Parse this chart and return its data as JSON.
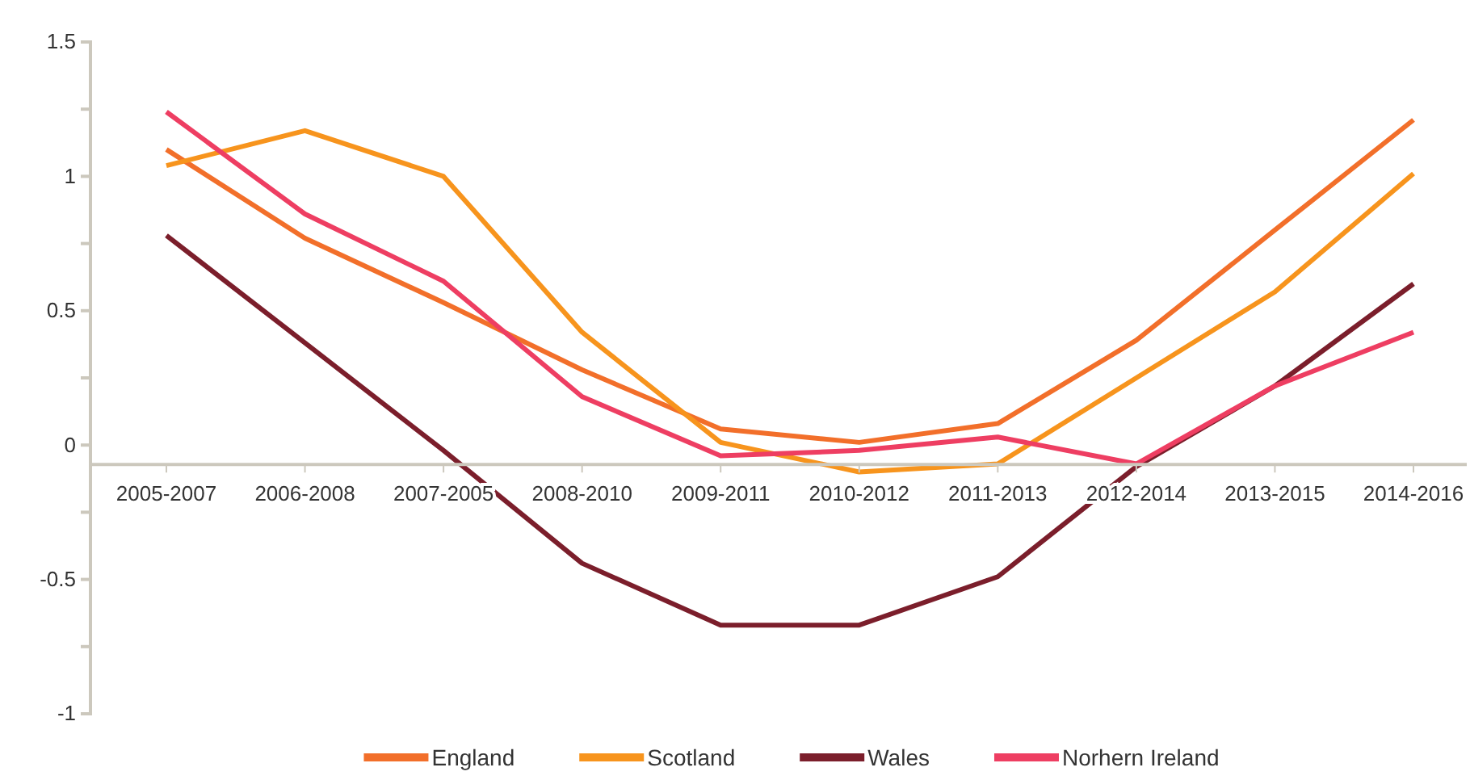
{
  "chart_data": {
    "type": "line",
    "categories": [
      "2005-2007",
      "2006-2008",
      "2007-2005",
      "2008-2010",
      "2009-2011",
      "2010-2012",
      "2011-2013",
      "2012-2014",
      "2013-2015",
      "2014-2016"
    ],
    "series": [
      {
        "name": "England",
        "color": "#f26f2a",
        "values": [
          1.1,
          0.77,
          0.53,
          0.28,
          0.06,
          0.01,
          0.08,
          0.39,
          0.8,
          1.21
        ]
      },
      {
        "name": "Scotland",
        "color": "#f7941d",
        "values": [
          1.04,
          1.17,
          1.0,
          0.42,
          0.01,
          -0.1,
          -0.07,
          0.25,
          0.57,
          1.01
        ]
      },
      {
        "name": "Wales",
        "color": "#7b1e2b",
        "values": [
          0.78,
          0.38,
          -0.02,
          -0.44,
          -0.67,
          -0.67,
          -0.49,
          -0.08,
          0.22,
          0.6
        ]
      },
      {
        "name": "Norhern Ireland",
        "color": "#ee3e62",
        "values": [
          1.24,
          0.86,
          0.61,
          0.18,
          -0.04,
          -0.02,
          0.03,
          -0.07,
          0.22,
          0.42
        ]
      }
    ],
    "ylim": [
      -1,
      1.5
    ],
    "yticks": [
      -1,
      {
        "value": -0.75,
        "label": null
      },
      -0.5,
      {
        "value": -0.25,
        "label": null
      },
      0,
      {
        "value": 0.25,
        "label": null
      },
      0.5,
      {
        "value": 0.75,
        "label": null
      },
      1,
      {
        "value": 1.25,
        "label": null
      },
      1.5
    ],
    "grid": false,
    "legend": "bottom",
    "marker": "none",
    "line_style": "solid"
  }
}
